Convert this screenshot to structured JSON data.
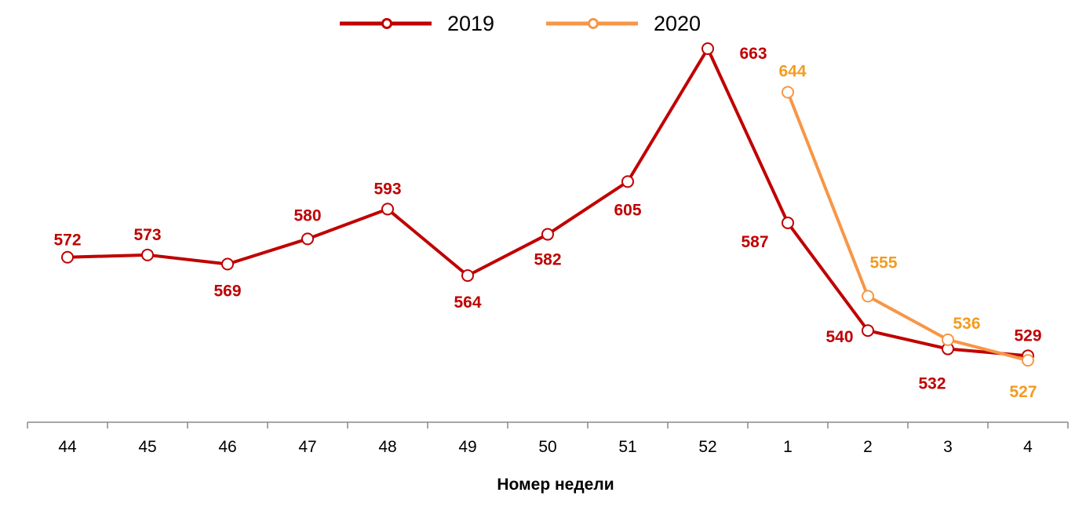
{
  "chart_data": {
    "type": "line",
    "xlabel": "Номер недели",
    "ylabel": "",
    "categories": [
      "44",
      "45",
      "46",
      "47",
      "48",
      "49",
      "50",
      "51",
      "52",
      "1",
      "2",
      "3",
      "4"
    ],
    "ylim": [
      500,
      684
    ],
    "grid": false,
    "legend_placement": "top-center",
    "series": [
      {
        "name": "2019",
        "color": "#C00000",
        "label_color": "#C00000",
        "values": [
          572,
          573,
          569,
          580,
          593,
          564,
          582,
          605,
          663,
          587,
          540,
          532,
          529
        ]
      },
      {
        "name": "2020",
        "color": "#F79646",
        "label_color": "#F39C1E",
        "values": [
          null,
          null,
          null,
          null,
          null,
          null,
          null,
          null,
          null,
          644,
          555,
          536,
          527
        ]
      }
    ]
  }
}
